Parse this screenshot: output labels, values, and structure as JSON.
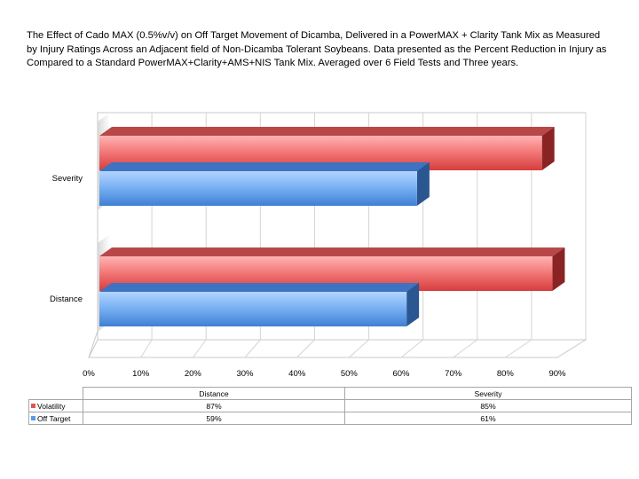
{
  "title_lines": [
    "The Effect of Cado MAX (0.5%v/v) on Off Target Movement of Dicamba, Delivered in a PowerMAX + Clarity Tank Mix as Measured",
    "by Injury Ratings Across an Adjacent field of Non-Dicamba Tolerant Soybeans. Data presented as the Percent Reduction in Injury as",
    "Compared to a Standard PowerMAX+Clarity+AMS+NIS Tank Mix.  Averaged over 6 Field Tests and Three years."
  ],
  "chart_data": {
    "type": "bar",
    "orientation": "horizontal",
    "three_d": true,
    "categories": [
      "Distance",
      "Severity"
    ],
    "series": [
      {
        "name": "Volatility",
        "values": [
          87,
          85
        ],
        "labels": [
          "87%",
          "85%"
        ],
        "color": "#e05555"
      },
      {
        "name": "Off Target",
        "values": [
          59,
          61
        ],
        "labels": [
          "59%",
          "61%"
        ],
        "color": "#5b9be6"
      }
    ],
    "xlim": [
      0,
      90
    ],
    "xticks": [
      "0%",
      "10%",
      "20%",
      "30%",
      "40%",
      "50%",
      "60%",
      "70%",
      "80%",
      "90%"
    ],
    "grid": true,
    "legend": "data-table"
  }
}
